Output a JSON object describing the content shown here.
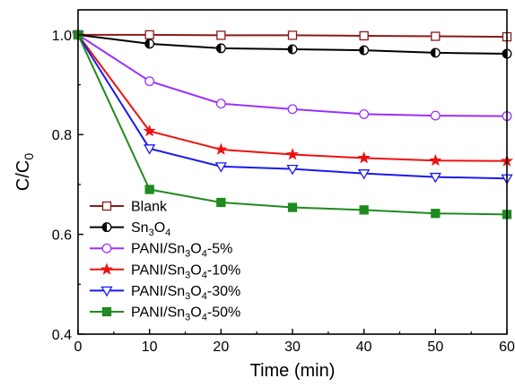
{
  "chart_data": {
    "type": "line",
    "xlabel": "Time (min)",
    "ylabel": {
      "base": "C/C",
      "sub": "0"
    },
    "xlim": [
      0,
      60
    ],
    "ylim": [
      0.4,
      1.05
    ],
    "xticks": [
      0,
      10,
      20,
      30,
      40,
      50,
      60
    ],
    "yticks": [
      0.4,
      0.6,
      0.8,
      1.0
    ],
    "ytick_labels": [
      "0.4",
      "0.6",
      "0.8",
      "1.0"
    ],
    "grid": false,
    "legend_position": "bottom-left",
    "x": [
      0,
      10,
      20,
      30,
      40,
      50,
      60
    ],
    "series": [
      {
        "name": "Blank",
        "name_parts": [
          [
            "Blank",
            ""
          ]
        ],
        "color": "#8b1a1a",
        "marker": "square-open",
        "values": [
          1.0,
          1.0,
          0.999,
          0.999,
          0.998,
          0.997,
          0.996
        ]
      },
      {
        "name": "Sn3O4",
        "name_parts": [
          [
            "Sn",
            ""
          ],
          [
            "3",
            "sub"
          ],
          [
            "O",
            ""
          ],
          [
            "4",
            "sub"
          ]
        ],
        "color": "#000000",
        "marker": "circle-half",
        "values": [
          1.0,
          0.982,
          0.973,
          0.971,
          0.969,
          0.964,
          0.962
        ]
      },
      {
        "name": "PANI/Sn3O4-5%",
        "name_parts": [
          [
            "PANI/Sn",
            ""
          ],
          [
            "3",
            "sub"
          ],
          [
            "O",
            ""
          ],
          [
            "4",
            "sub"
          ],
          [
            "-5%",
            ""
          ]
        ],
        "color": "#9b30ff",
        "marker": "circle-open",
        "values": [
          1.0,
          0.907,
          0.862,
          0.851,
          0.841,
          0.838,
          0.837
        ]
      },
      {
        "name": "PANI/Sn3O4-10%",
        "name_parts": [
          [
            "PANI/Sn",
            ""
          ],
          [
            "3",
            "sub"
          ],
          [
            "O",
            ""
          ],
          [
            "4",
            "sub"
          ],
          [
            "-10%",
            ""
          ]
        ],
        "color": "#ee1111",
        "marker": "star",
        "values": [
          1.0,
          0.807,
          0.77,
          0.76,
          0.753,
          0.748,
          0.747
        ]
      },
      {
        "name": "PANI/Sn3O4-30%",
        "name_parts": [
          [
            "PANI/Sn",
            ""
          ],
          [
            "3",
            "sub"
          ],
          [
            "O",
            ""
          ],
          [
            "4",
            "sub"
          ],
          [
            "-30%",
            ""
          ]
        ],
        "color": "#1a1aee",
        "marker": "triangle-down-open",
        "values": [
          1.0,
          0.772,
          0.736,
          0.731,
          0.722,
          0.715,
          0.712
        ]
      },
      {
        "name": "PANI/Sn3O4-50%",
        "name_parts": [
          [
            "PANI/Sn",
            ""
          ],
          [
            "3",
            "sub"
          ],
          [
            "O",
            ""
          ],
          [
            "4",
            "sub"
          ],
          [
            "-50%",
            ""
          ]
        ],
        "color": "#1f8a1f",
        "marker": "square-filled",
        "values": [
          1.0,
          0.69,
          0.664,
          0.654,
          0.649,
          0.642,
          0.64
        ]
      }
    ]
  }
}
